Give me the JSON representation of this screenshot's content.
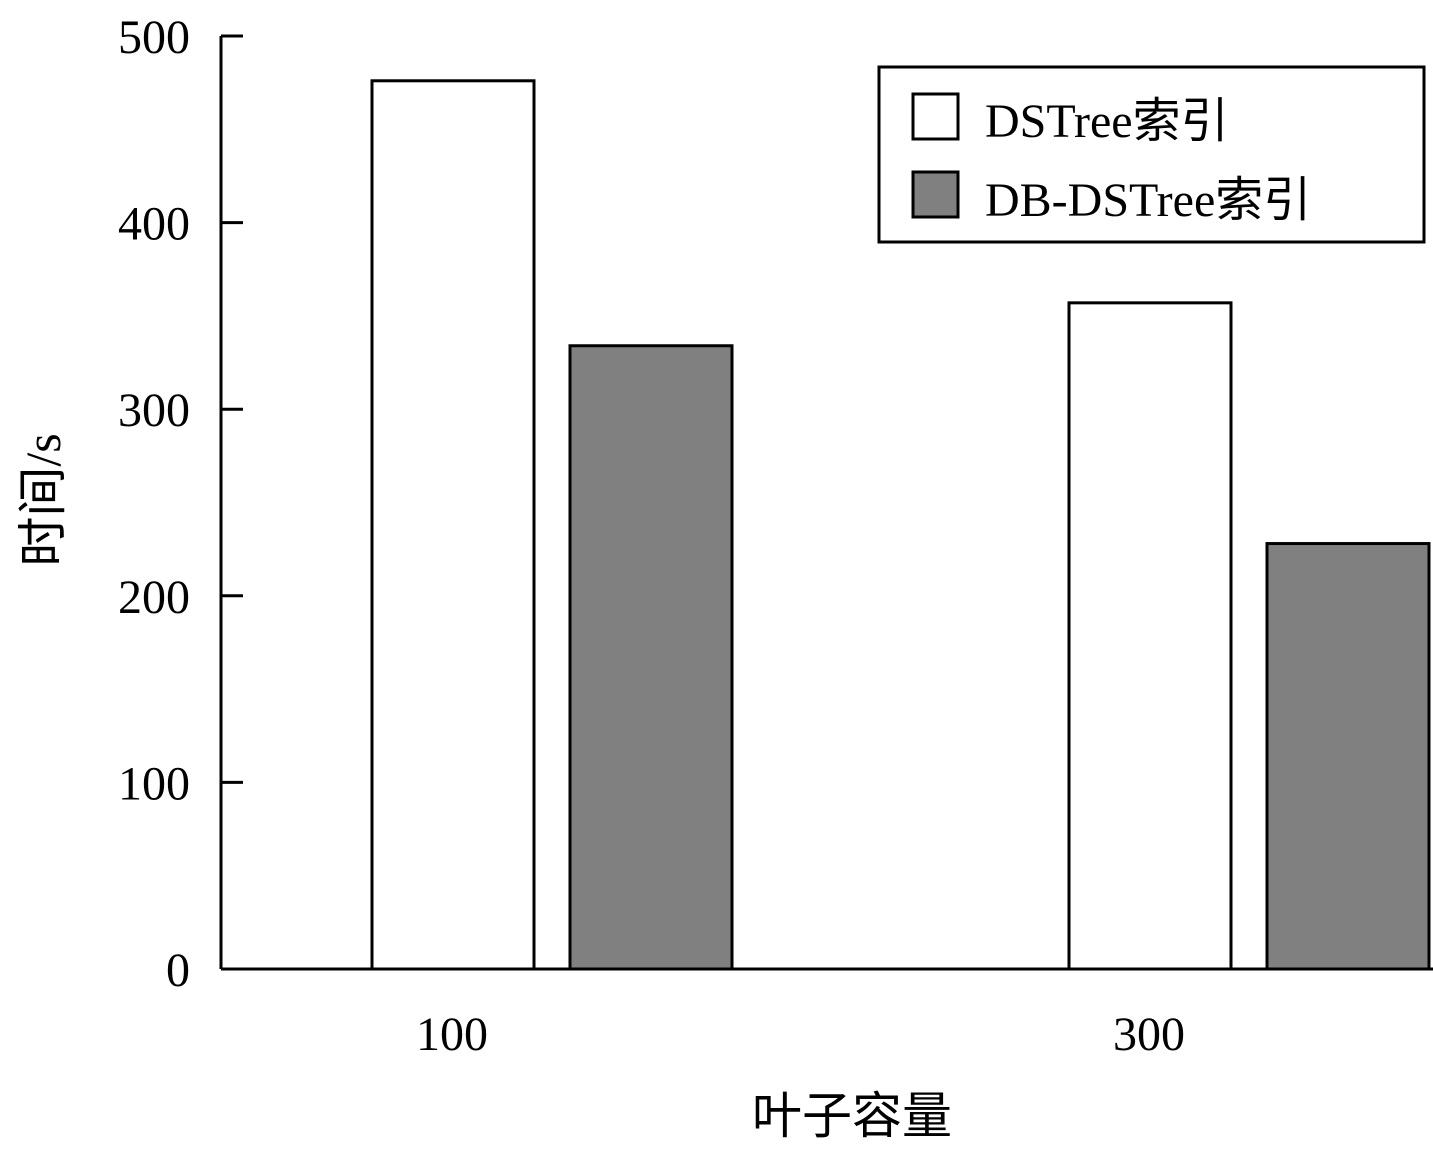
{
  "chart_data": {
    "type": "bar",
    "xlabel": "叶子容量",
    "ylabel": "时间/s",
    "categories": [
      "100",
      "300"
    ],
    "series": [
      {
        "name": "DSTree索引",
        "values": [
          476,
          357
        ],
        "color": "#ffffff"
      },
      {
        "name": "DB-DSTree索引",
        "values": [
          334,
          228
        ],
        "color": "#808080"
      }
    ],
    "ylim": [
      0,
      500
    ],
    "yticks": [
      0,
      100,
      200,
      300,
      400,
      500
    ],
    "grid": false,
    "legend_position": "top-right"
  }
}
